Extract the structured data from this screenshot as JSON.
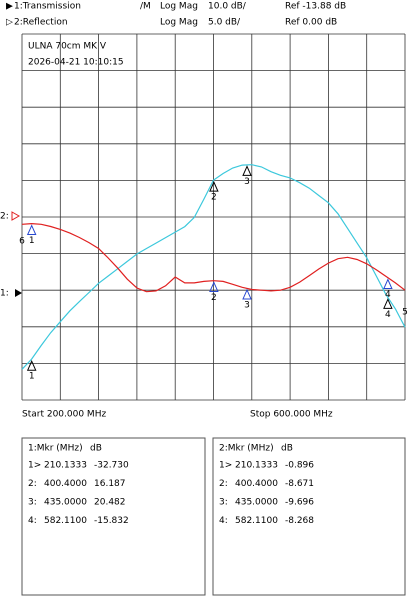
{
  "chart_data": {
    "type": "line",
    "title": "ULNA 70cm MK V",
    "subtitle": "2026-04-21 10:10:15",
    "x_start_label": "Start 200.000 MHz",
    "x_stop_label": "Stop 600.000 MHz",
    "annotations": [
      "6",
      "5"
    ],
    "x": [
      200,
      210,
      220,
      230,
      240,
      250,
      260,
      270,
      280,
      290,
      300,
      310,
      320,
      330,
      340,
      350,
      360,
      370,
      380,
      390,
      400,
      410,
      420,
      430,
      440,
      450,
      460,
      470,
      480,
      490,
      500,
      510,
      520,
      530,
      540,
      550,
      560,
      570,
      580,
      590,
      600
    ],
    "xlim": [
      200,
      600
    ],
    "xticks": [
      200,
      240,
      280,
      320,
      360,
      400,
      440,
      480,
      520,
      560,
      600
    ],
    "ylim": [
      -43.88,
      56.12
    ],
    "yticks": [
      -43.88,
      -33.88,
      -23.88,
      -13.88,
      -3.88,
      6.12,
      16.12,
      26.12,
      36.12,
      46.12,
      56.12
    ],
    "y2lim": [
      -25,
      25
    ],
    "y2ticks": [
      -25,
      -20,
      -15,
      -10,
      -5,
      0,
      5,
      10,
      15,
      20,
      25
    ],
    "grid": true,
    "series": [
      {
        "name": "1:Transmission",
        "symbol": "▶",
        "mode": "/M",
        "format": "Log Mag",
        "scale": "10.0 dB/",
        "ref": "Ref -13.88 dB",
        "ref_label": "1:",
        "color": "#3cc8dc",
        "values": [
          -35.5,
          -32.7,
          -29,
          -25.5,
          -22.5,
          -19.5,
          -17,
          -14.5,
          -12,
          -10,
          -8,
          -6,
          -4,
          -2.5,
          -1,
          0.5,
          2,
          3.5,
          6,
          11,
          16.2,
          18,
          19.5,
          20.3,
          20.4,
          19.8,
          18.5,
          17.5,
          16.8,
          15.5,
          14,
          12,
          10,
          7,
          3,
          -1,
          -5,
          -10,
          -15,
          -19,
          -24
        ],
        "markers": {
          "title": "1:Mkr (MHz)",
          "unit": "dB",
          "ids": [
            "1>",
            "2:",
            "3:",
            "4:"
          ],
          "names": [
            "1",
            "2",
            "3",
            "4"
          ],
          "x": [
            210.1333,
            400.4,
            435,
            582.11
          ],
          "x_labels": [
            "210.1333",
            "400.4000",
            "435.0000",
            "582.1100"
          ],
          "values": [
            -32.73,
            16.187,
            20.482,
            -15.832
          ],
          "value_labels": [
            "-32.730",
            "16.187",
            "20.482",
            "-15.832"
          ]
        }
      },
      {
        "name": "2:Reflection",
        "symbol": "▷",
        "format": "Log Mag",
        "scale": "5.0 dB/",
        "ref": "Ref  0.00 dB",
        "ref_label": "2:",
        "color": "#e02020",
        "axis": "y2",
        "values": [
          -1.0,
          -0.9,
          -1.0,
          -1.3,
          -1.7,
          -2.2,
          -2.8,
          -3.5,
          -4.3,
          -5.6,
          -7.0,
          -8.5,
          -9.7,
          -10.2,
          -10.1,
          -9.4,
          -8.2,
          -9.0,
          -9.0,
          -8.8,
          -8.7,
          -8.8,
          -9.2,
          -9.6,
          -9.9,
          -10.0,
          -10.1,
          -10.0,
          -9.6,
          -8.9,
          -8.0,
          -7.1,
          -6.3,
          -5.7,
          -5.5,
          -5.8,
          -6.4,
          -7.2,
          -8.1,
          -9.0,
          -10.0
        ],
        "markers": {
          "title": "2:Mkr (MHz)",
          "unit": "dB",
          "ids": [
            "1>",
            "2:",
            "3:",
            "4:"
          ],
          "names": [
            "1",
            "2",
            "3",
            "4"
          ],
          "x": [
            210.1333,
            400.4,
            435,
            582.11
          ],
          "x_labels": [
            "210.1333",
            "400.4000",
            "435.0000",
            "582.1100"
          ],
          "values": [
            -0.896,
            -8.671,
            -9.696,
            -8.268
          ],
          "value_labels": [
            "-0.896",
            "-8.671",
            "-9.696",
            "-8.268"
          ]
        }
      }
    ]
  }
}
